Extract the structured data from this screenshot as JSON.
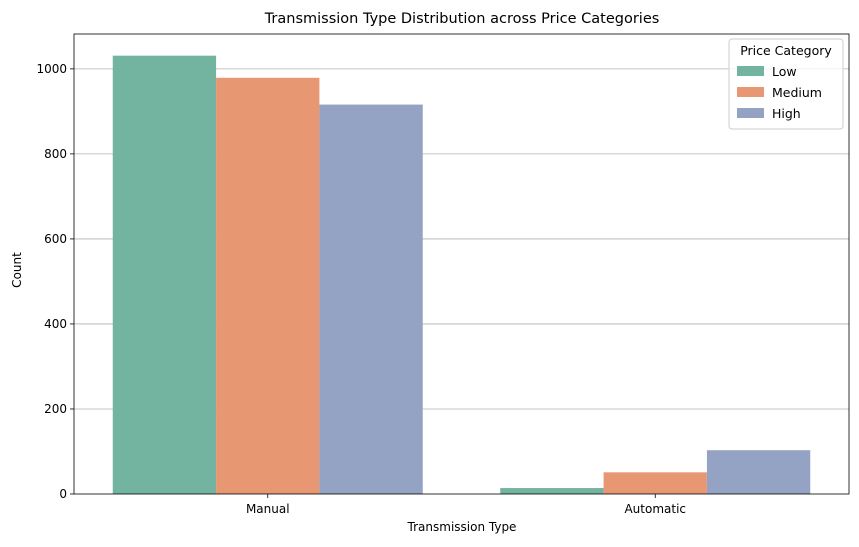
{
  "chart_data": {
    "type": "bar",
    "title": "Transmission Type Distribution across Price Categories",
    "xlabel": "Transmission Type",
    "ylabel": "Count",
    "categories": [
      "Manual",
      "Automatic"
    ],
    "series": [
      {
        "name": "Low",
        "values": [
          1031,
          14
        ],
        "color": "#73b4a0"
      },
      {
        "name": "Medium",
        "values": [
          979,
          51
        ],
        "color": "#e89773"
      },
      {
        "name": "High",
        "values": [
          916,
          103
        ],
        "color": "#94a3c3"
      }
    ],
    "ylim": [
      0,
      1082
    ],
    "yticks": [
      0,
      200,
      400,
      600,
      800,
      1000
    ],
    "grid": "y",
    "legend": {
      "title": "Price Category",
      "placement": "top-right"
    }
  }
}
